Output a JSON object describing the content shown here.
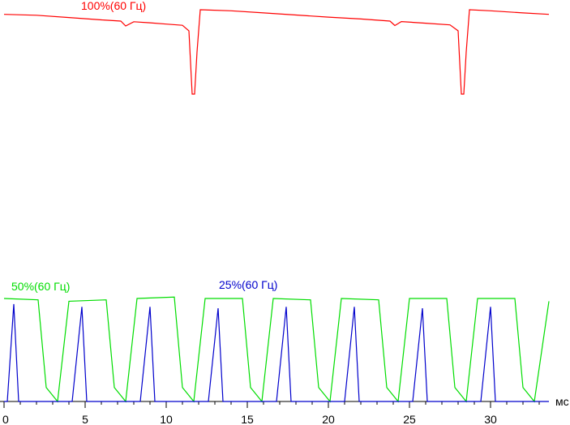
{
  "chart_data": {
    "type": "line",
    "x_unit_label": "мс",
    "x_ticks": [
      0,
      5,
      10,
      15,
      20,
      25,
      30
    ],
    "xlim": [
      0,
      33.6
    ],
    "series": [
      {
        "name": "100%(60 Гц)",
        "color": "#ff0000",
        "points": [
          [
            0,
            0.978
          ],
          [
            2,
            0.974
          ],
          [
            4,
            0.963
          ],
          [
            6,
            0.952
          ],
          [
            7.2,
            0.946
          ],
          [
            7.5,
            0.923
          ],
          [
            8,
            0.943
          ],
          [
            9,
            0.938
          ],
          [
            10,
            0.932
          ],
          [
            11,
            0.926
          ],
          [
            11.4,
            0.9
          ],
          [
            11.6,
            0.6
          ],
          [
            11.75,
            0.6
          ],
          [
            11.9,
            0.8
          ],
          [
            12.1,
            1.0
          ],
          [
            14,
            0.995
          ],
          [
            16,
            0.985
          ],
          [
            18,
            0.975
          ],
          [
            20,
            0.965
          ],
          [
            22,
            0.956
          ],
          [
            23.8,
            0.946
          ],
          [
            24.1,
            0.925
          ],
          [
            24.5,
            0.944
          ],
          [
            26,
            0.936
          ],
          [
            27.5,
            0.928
          ],
          [
            28,
            0.9
          ],
          [
            28.2,
            0.6
          ],
          [
            28.35,
            0.6
          ],
          [
            28.5,
            0.8
          ],
          [
            28.7,
            1.0
          ],
          [
            30,
            0.995
          ],
          [
            32,
            0.985
          ],
          [
            33.6,
            0.978
          ]
        ]
      },
      {
        "name": "50%(60 Гц)",
        "color": "#00dd00",
        "points": [
          [
            0,
            0.74
          ],
          [
            2.1,
            0.73
          ],
          [
            2.6,
            0.1
          ],
          [
            3.3,
            0.0
          ],
          [
            4.0,
            0.72
          ],
          [
            6.3,
            0.73
          ],
          [
            6.8,
            0.1
          ],
          [
            7.5,
            0.0
          ],
          [
            8.2,
            0.74
          ],
          [
            10.5,
            0.75
          ],
          [
            11.0,
            0.1
          ],
          [
            11.7,
            0.0
          ],
          [
            12.4,
            0.74
          ],
          [
            14.7,
            0.74
          ],
          [
            15.2,
            0.1
          ],
          [
            15.9,
            0.0
          ],
          [
            16.6,
            0.74
          ],
          [
            18.9,
            0.73
          ],
          [
            19.4,
            0.1
          ],
          [
            20.1,
            0.0
          ],
          [
            20.8,
            0.74
          ],
          [
            23.1,
            0.73
          ],
          [
            23.6,
            0.1
          ],
          [
            24.3,
            0.0
          ],
          [
            25.0,
            0.74
          ],
          [
            27.3,
            0.74
          ],
          [
            27.8,
            0.1
          ],
          [
            28.5,
            0.0
          ],
          [
            29.2,
            0.74
          ],
          [
            31.5,
            0.74
          ],
          [
            32.0,
            0.1
          ],
          [
            32.7,
            0.0
          ],
          [
            33.6,
            0.72
          ]
        ]
      },
      {
        "name": "25%(60 Гц)",
        "color": "#0000cc",
        "points": [
          [
            0,
            0.0
          ],
          [
            0.2,
            0.0
          ],
          [
            0.6,
            0.7
          ],
          [
            0.9,
            0.0
          ],
          [
            4.2,
            0.0
          ],
          [
            4.8,
            0.68
          ],
          [
            5.1,
            0.0
          ],
          [
            8.4,
            0.0
          ],
          [
            9.0,
            0.68
          ],
          [
            9.3,
            0.0
          ],
          [
            12.6,
            0.0
          ],
          [
            13.2,
            0.67
          ],
          [
            13.5,
            0.0
          ],
          [
            16.8,
            0.0
          ],
          [
            17.4,
            0.68
          ],
          [
            17.7,
            0.0
          ],
          [
            21.0,
            0.0
          ],
          [
            21.6,
            0.68
          ],
          [
            21.9,
            0.0
          ],
          [
            25.2,
            0.0
          ],
          [
            25.8,
            0.67
          ],
          [
            26.1,
            0.0
          ],
          [
            29.4,
            0.0
          ],
          [
            30.0,
            0.68
          ],
          [
            30.3,
            0.0
          ],
          [
            33.6,
            0.0
          ]
        ]
      }
    ]
  }
}
